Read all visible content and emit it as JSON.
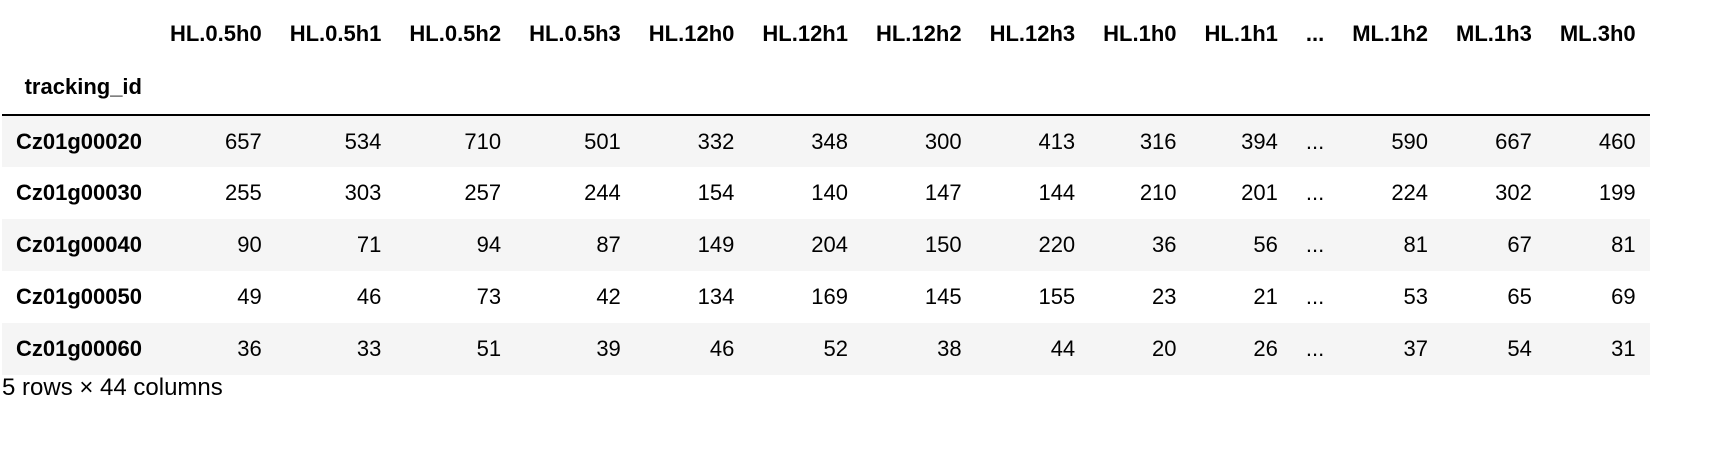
{
  "table": {
    "index_name": "tracking_id",
    "columns": [
      "HL.0.5h0",
      "HL.0.5h1",
      "HL.0.5h2",
      "HL.0.5h3",
      "HL.12h0",
      "HL.12h1",
      "HL.12h2",
      "HL.12h3",
      "HL.1h0",
      "HL.1h1",
      "...",
      "ML.1h2",
      "ML.1h3",
      "ML.3h0"
    ],
    "rows": [
      {
        "id": "Cz01g00020",
        "values": [
          "657",
          "534",
          "710",
          "501",
          "332",
          "348",
          "300",
          "413",
          "316",
          "394",
          "...",
          "590",
          "667",
          "460"
        ]
      },
      {
        "id": "Cz01g00030",
        "values": [
          "255",
          "303",
          "257",
          "244",
          "154",
          "140",
          "147",
          "144",
          "210",
          "201",
          "...",
          "224",
          "302",
          "199"
        ]
      },
      {
        "id": "Cz01g00040",
        "values": [
          "90",
          "71",
          "94",
          "87",
          "149",
          "204",
          "150",
          "220",
          "36",
          "56",
          "...",
          "81",
          "67",
          "81"
        ]
      },
      {
        "id": "Cz01g00050",
        "values": [
          "49",
          "46",
          "73",
          "42",
          "134",
          "169",
          "145",
          "155",
          "23",
          "21",
          "...",
          "53",
          "65",
          "69"
        ]
      },
      {
        "id": "Cz01g00060",
        "values": [
          "36",
          "33",
          "51",
          "39",
          "46",
          "52",
          "38",
          "44",
          "20",
          "26",
          "...",
          "37",
          "54",
          "31"
        ]
      }
    ]
  },
  "shape_text": "5 rows × 44 columns"
}
